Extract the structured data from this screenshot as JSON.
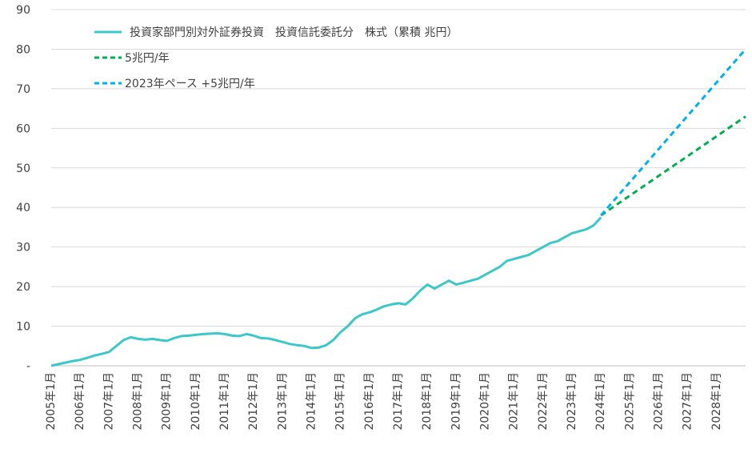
{
  "chart_data": {
    "type": "line",
    "title": "",
    "xlabel": "",
    "ylabel": "",
    "ylim": [
      0,
      90
    ],
    "y_ticks": [
      "-",
      "10",
      "20",
      "30",
      "40",
      "50",
      "60",
      "70",
      "80",
      "90"
    ],
    "x_tick_labels": [
      "2005年1月",
      "2006年1月",
      "2007年1月",
      "2008年1月",
      "2009年1月",
      "2010年1月",
      "2011年1月",
      "2012年1月",
      "2013年1月",
      "2014年1月",
      "2015年1月",
      "2016年1月",
      "2017年1月",
      "2018年1月",
      "2019年1月",
      "2020年1月",
      "2021年1月",
      "2022年1月",
      "2023年1月",
      "2024年1月",
      "2025年1月",
      "2026年1月",
      "2027年1月",
      "2028年1月"
    ],
    "x_range": [
      2005.0,
      2029.0
    ],
    "grid": "horizontal",
    "legend_position": "top-left",
    "series": [
      {
        "name": "投資家部門別対外証券投資　投資信託委託分　株式（累積 兆円）",
        "color": "#3cc8c8",
        "style": "solid",
        "points": [
          [
            2005.0,
            0
          ],
          [
            2005.25,
            0.4
          ],
          [
            2005.5,
            0.8
          ],
          [
            2005.75,
            1.2
          ],
          [
            2006.0,
            1.5
          ],
          [
            2006.25,
            2
          ],
          [
            2006.5,
            2.6
          ],
          [
            2006.75,
            3
          ],
          [
            2007.0,
            3.5
          ],
          [
            2007.25,
            5
          ],
          [
            2007.5,
            6.5
          ],
          [
            2007.75,
            7.2
          ],
          [
            2008.0,
            6.8
          ],
          [
            2008.25,
            6.6
          ],
          [
            2008.5,
            6.8
          ],
          [
            2008.75,
            6.5
          ],
          [
            2009.0,
            6.3
          ],
          [
            2009.25,
            7
          ],
          [
            2009.5,
            7.5
          ],
          [
            2009.75,
            7.6
          ],
          [
            2010.0,
            7.8
          ],
          [
            2010.25,
            8
          ],
          [
            2010.5,
            8.1
          ],
          [
            2010.75,
            8.2
          ],
          [
            2011.0,
            8
          ],
          [
            2011.25,
            7.6
          ],
          [
            2011.5,
            7.5
          ],
          [
            2011.75,
            8
          ],
          [
            2012.0,
            7.6
          ],
          [
            2012.25,
            7
          ],
          [
            2012.5,
            6.9
          ],
          [
            2012.75,
            6.5
          ],
          [
            2013.0,
            6
          ],
          [
            2013.25,
            5.5
          ],
          [
            2013.5,
            5.2
          ],
          [
            2013.75,
            5
          ],
          [
            2014.0,
            4.5
          ],
          [
            2014.25,
            4.6
          ],
          [
            2014.5,
            5.2
          ],
          [
            2014.75,
            6.5
          ],
          [
            2015.0,
            8.5
          ],
          [
            2015.25,
            10
          ],
          [
            2015.5,
            12
          ],
          [
            2015.75,
            13
          ],
          [
            2016.0,
            13.5
          ],
          [
            2016.25,
            14.2
          ],
          [
            2016.5,
            15
          ],
          [
            2016.75,
            15.5
          ],
          [
            2017.0,
            15.8
          ],
          [
            2017.25,
            15.5
          ],
          [
            2017.5,
            17
          ],
          [
            2017.75,
            19
          ],
          [
            2018.0,
            20.5
          ],
          [
            2018.25,
            19.5
          ],
          [
            2018.5,
            20.5
          ],
          [
            2018.75,
            21.5
          ],
          [
            2019.0,
            20.5
          ],
          [
            2019.25,
            21
          ],
          [
            2019.5,
            21.5
          ],
          [
            2019.75,
            22
          ],
          [
            2020.0,
            23
          ],
          [
            2020.25,
            24
          ],
          [
            2020.5,
            25
          ],
          [
            2020.75,
            26.5
          ],
          [
            2021.0,
            27
          ],
          [
            2021.25,
            27.5
          ],
          [
            2021.5,
            28
          ],
          [
            2021.75,
            29
          ],
          [
            2022.0,
            30
          ],
          [
            2022.25,
            31
          ],
          [
            2022.5,
            31.5
          ],
          [
            2022.75,
            32.5
          ],
          [
            2023.0,
            33.5
          ],
          [
            2023.25,
            34
          ],
          [
            2023.5,
            34.5
          ],
          [
            2023.75,
            35.5
          ],
          [
            2024.0,
            37.5
          ]
        ]
      },
      {
        "name": "5兆円/年",
        "color": "#00b050",
        "style": "dashed",
        "points": [
          [
            2024.0,
            38
          ],
          [
            2029.0,
            63
          ]
        ]
      },
      {
        "name": "2023年ペース +5兆円/年",
        "color": "#00b0f0",
        "style": "dashed",
        "points": [
          [
            2024.0,
            38
          ],
          [
            2029.0,
            80
          ]
        ]
      }
    ]
  }
}
